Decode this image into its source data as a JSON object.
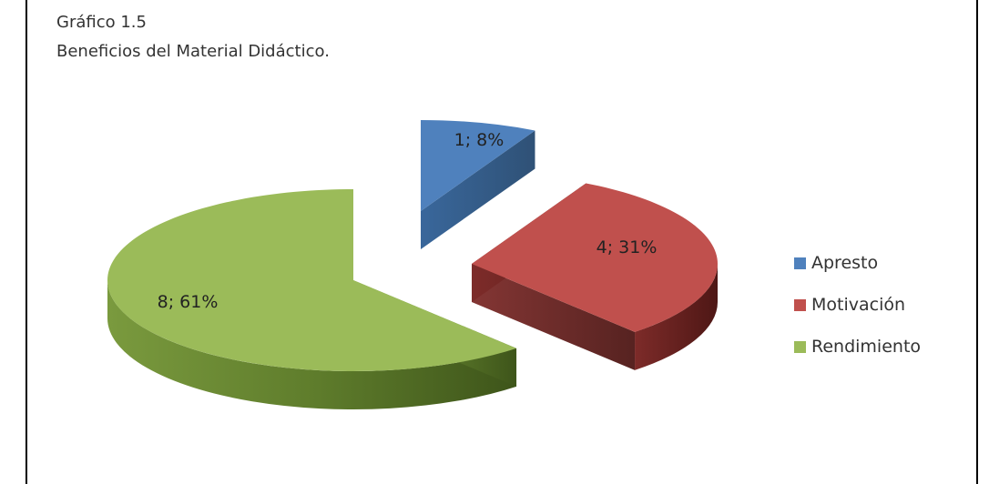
{
  "figure": {
    "label": "Gráfico 1.5",
    "caption": "Beneficios del Material Didáctico."
  },
  "chart_data": {
    "type": "pie",
    "style": "3d-exploded",
    "categories": [
      "Apresto",
      "Motivación",
      "Rendimiento"
    ],
    "values": [
      1,
      4,
      8
    ],
    "percentages": [
      8,
      31,
      61
    ],
    "data_labels": [
      "1; 8%",
      "4; 31%",
      "8; 61%"
    ],
    "colors": [
      "#4f81bd",
      "#c0504d",
      "#9bbb59"
    ],
    "legend_position": "right"
  }
}
